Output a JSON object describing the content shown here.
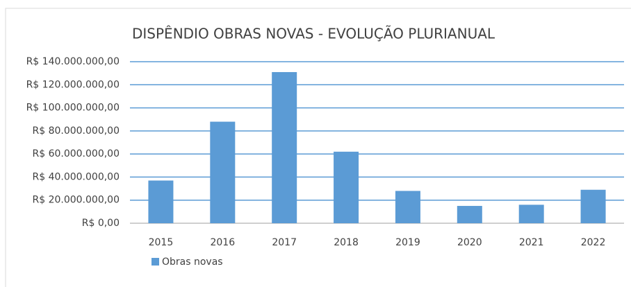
{
  "chart_data": {
    "type": "bar",
    "title": "DISPÊNDIO OBRAS NOVAS - EVOLUÇÃO PLURIANUAL",
    "categories": [
      "2015",
      "2016",
      "2017",
      "2018",
      "2019",
      "2020",
      "2021",
      "2022"
    ],
    "series": [
      {
        "name": "Obras novas",
        "color": "#5b9bd5",
        "values": [
          37000000,
          88000000,
          131000000,
          62000000,
          28000000,
          15000000,
          16000000,
          29000000
        ]
      }
    ],
    "ylim": [
      0,
      140000000
    ],
    "yticks": [
      {
        "value": 0,
        "label": "R$ 0,00"
      },
      {
        "value": 20000000,
        "label": "R$ 20.000.000,00"
      },
      {
        "value": 40000000,
        "label": "R$ 40.000.000,00"
      },
      {
        "value": 60000000,
        "label": "R$ 60.000.000,00"
      },
      {
        "value": 80000000,
        "label": "R$ 80.000.000,00"
      },
      {
        "value": 100000000,
        "label": "R$ 100.000.000,00"
      },
      {
        "value": 120000000,
        "label": "R$ 120.000.000,00"
      },
      {
        "value": 140000000,
        "label": "R$ 140.000.000,00"
      }
    ],
    "grid": true,
    "legend": "bottom-left"
  }
}
